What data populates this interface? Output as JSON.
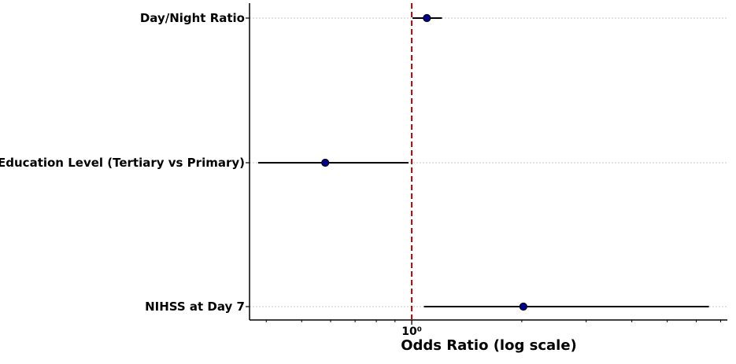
{
  "chart_data": {
    "type": "forest",
    "title": "",
    "xlabel": "Odds Ratio (log scale)",
    "ylabel": "",
    "x_scale": "log",
    "xlim": [
      0.36,
      7.3
    ],
    "reference_line": {
      "value": 1.0,
      "style": "dashed",
      "color": "#9b1c1c"
    },
    "x_tick_labels": [
      {
        "value": 1.0,
        "label": "10⁰"
      }
    ],
    "grid": "horizontal dotted",
    "colors": {
      "point": "#00008b",
      "error_bar": "#000000"
    },
    "rows": [
      {
        "label": "Day/Night Ratio",
        "or": 1.1,
        "ci_low": 1.005,
        "ci_high": 1.21
      },
      {
        "label": "Education Level (Tertiary vs Primary)",
        "or": 0.58,
        "ci_low": 0.38,
        "ci_high": 0.98
      },
      {
        "label": "NIHSS at Day 7",
        "or": 2.02,
        "ci_low": 1.08,
        "ci_high": 6.5
      }
    ]
  }
}
